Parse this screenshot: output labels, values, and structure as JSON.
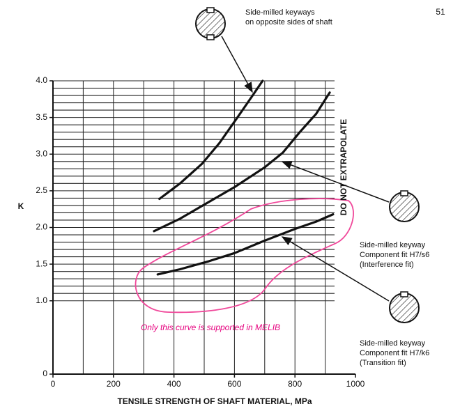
{
  "page_number": "51",
  "chart_data": {
    "type": "line",
    "xlabel": "TENSILE STRENGTH OF SHAFT MATERIAL, MPa",
    "ylabel": "K",
    "xlim": [
      0,
      1000
    ],
    "ylim": [
      0,
      4.0
    ],
    "xticks": [
      0,
      200,
      400,
      600,
      800,
      1000
    ],
    "yticks": [
      0,
      {
        "value": 1.0,
        "label": "1.0"
      },
      1.5,
      {
        "value": 2.0,
        "label": "2.0"
      },
      2.5,
      {
        "value": 3.0,
        "label": "3.0"
      },
      3.5,
      {
        "value": 4.0,
        "label": "4.0"
      }
    ],
    "x_grid": [
      100,
      200,
      300,
      400,
      500,
      600,
      700,
      800,
      900
    ],
    "y_grid": [
      1.0,
      1.1,
      1.2,
      1.3,
      1.4,
      1.5,
      1.6,
      1.7,
      1.8,
      1.9,
      2.0,
      2.1,
      2.2,
      2.3,
      2.4,
      2.5,
      2.6,
      2.7,
      2.8,
      2.9,
      3.0,
      3.1,
      3.2,
      3.3,
      3.4,
      3.5,
      3.6,
      3.7,
      3.8,
      3.9,
      4.0
    ],
    "grid": true,
    "series": [
      {
        "color": "#111111",
        "x": [
          352,
          420,
          493,
          550,
          608,
          660,
          693
        ],
        "values": [
          2.39,
          2.6,
          2.87,
          3.15,
          3.49,
          3.8,
          4.0
        ]
      },
      {
        "color": "#111111",
        "x": [
          334,
          420,
          516,
          600,
          700,
          760,
          816,
          870,
          915
        ],
        "values": [
          1.95,
          2.12,
          2.35,
          2.55,
          2.82,
          3.02,
          3.3,
          3.55,
          3.84
        ]
      },
      {
        "color": "#111111",
        "x": [
          346,
          420,
          516,
          600,
          700,
          800,
          870,
          926
        ],
        "values": [
          1.36,
          1.43,
          1.54,
          1.65,
          1.82,
          1.98,
          2.08,
          2.18
        ]
      }
    ],
    "annotations": {
      "extrapolate": "DO NOT EXTRAPOLATE",
      "opposite": [
        "Side-milled keyways",
        "on opposite sides of shaft"
      ],
      "interference": [
        "Side-milled keyway",
        "Component fit H7/s6",
        "(Interference fit)"
      ],
      "transition": [
        "Side-milled keyway",
        "Component fit H7/k6",
        "(Transition fit)"
      ],
      "melib_note": "Only this curve is supported in MELIB"
    }
  }
}
